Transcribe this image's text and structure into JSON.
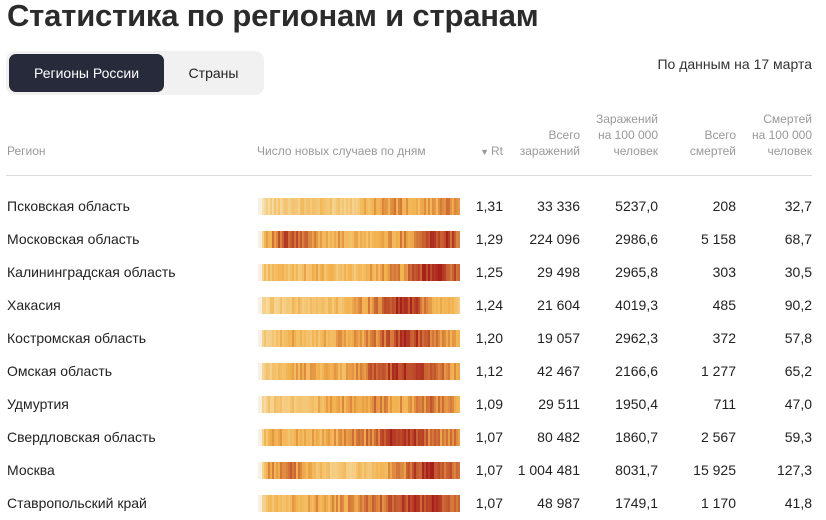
{
  "header": {
    "title": "Статистика по регионам и странам",
    "date_note": "По данным на 17 марта"
  },
  "tabs": [
    {
      "label": "Регионы России",
      "active": true
    },
    {
      "label": "Страны",
      "active": false
    }
  ],
  "columns": {
    "region": "Регион",
    "chart": "Число новых случаев по дням",
    "rt": "Rt",
    "rt_sort_icon": "sort-down-triangle",
    "total_line1": "Всего",
    "total_line2": "заражений",
    "per100_line1": "Заражений",
    "per100_line2": "на 100 000",
    "per100_line3": "человек",
    "deaths_line1": "Всего",
    "deaths_line2": "смертей",
    "dper100_line1": "Смертей",
    "dper100_line2": "на 100 000",
    "dper100_line3": "человек"
  },
  "colors": {
    "tab_active_bg": "#262a3a",
    "heat_low": "#f7e3b0",
    "heat_mid": "#f2b24e",
    "heat_high": "#a7201c"
  },
  "rows": [
    {
      "region": "Псковская область",
      "rt": "1,31",
      "total": "33 336",
      "per100": "5237,0",
      "deaths": "208",
      "dper100": "32,7",
      "heat_profile": [
        0.05,
        0.2,
        0.3,
        0.3,
        0.35,
        0.3,
        0.3,
        0.3,
        0.45,
        0.55,
        0.6,
        0.55,
        0.45,
        0.55,
        0.6,
        0.7
      ]
    },
    {
      "region": "Московская область",
      "rt": "1,29",
      "total": "224 096",
      "per100": "2986,6",
      "deaths": "5 158",
      "dper100": "68,7",
      "heat_profile": [
        0.5,
        0.6,
        0.8,
        0.75,
        0.6,
        0.5,
        0.5,
        0.45,
        0.4,
        0.5,
        0.55,
        0.6,
        0.7,
        0.9,
        0.9,
        0.75
      ]
    },
    {
      "region": "Калининградская область",
      "rt": "1,25",
      "total": "29 498",
      "per100": "2965,8",
      "deaths": "303",
      "dper100": "30,5",
      "heat_profile": [
        0.2,
        0.45,
        0.35,
        0.4,
        0.45,
        0.4,
        0.35,
        0.4,
        0.45,
        0.55,
        0.6,
        0.6,
        0.85,
        0.95,
        0.9,
        0.7
      ]
    },
    {
      "region": "Хакасия",
      "rt": "1,24",
      "total": "21 604",
      "per100": "4019,3",
      "deaths": "485",
      "dper100": "90,2",
      "heat_profile": [
        0.05,
        0.3,
        0.25,
        0.4,
        0.3,
        0.35,
        0.4,
        0.5,
        0.6,
        0.7,
        0.9,
        0.95,
        0.8,
        0.55,
        0.45,
        0.4
      ]
    },
    {
      "region": "Костромская область",
      "rt": "1,20",
      "total": "19 057",
      "per100": "2962,3",
      "deaths": "372",
      "dper100": "57,8",
      "heat_profile": [
        0.1,
        0.35,
        0.4,
        0.5,
        0.4,
        0.45,
        0.5,
        0.55,
        0.6,
        0.7,
        0.8,
        0.9,
        0.85,
        0.75,
        0.6,
        0.55
      ]
    },
    {
      "region": "Омская область",
      "rt": "1,12",
      "total": "42 467",
      "per100": "2166,6",
      "deaths": "1 277",
      "dper100": "65,2",
      "heat_profile": [
        0.05,
        0.3,
        0.45,
        0.5,
        0.55,
        0.5,
        0.45,
        0.55,
        0.7,
        0.8,
        0.85,
        0.9,
        0.95,
        0.8,
        0.65,
        0.6
      ]
    },
    {
      "region": "Удмуртия",
      "rt": "1,09",
      "total": "29 511",
      "per100": "1950,4",
      "deaths": "711",
      "dper100": "47,0",
      "heat_profile": [
        0.1,
        0.3,
        0.35,
        0.35,
        0.4,
        0.45,
        0.5,
        0.55,
        0.6,
        0.65,
        0.6,
        0.55,
        0.65,
        0.7,
        0.6,
        0.5
      ]
    },
    {
      "region": "Свердловская область",
      "rt": "1,07",
      "total": "80 482",
      "per100": "1860,7",
      "deaths": "2 567",
      "dper100": "59,3",
      "heat_profile": [
        0.3,
        0.5,
        0.45,
        0.5,
        0.5,
        0.45,
        0.55,
        0.6,
        0.65,
        0.75,
        0.9,
        0.95,
        0.85,
        0.7,
        0.65,
        0.6
      ]
    },
    {
      "region": "Москва",
      "rt": "1,07",
      "total": "1 004 481",
      "per100": "8031,7",
      "deaths": "15 925",
      "dper100": "127,3",
      "heat_profile": [
        0.45,
        0.55,
        0.75,
        0.6,
        0.45,
        0.3,
        0.3,
        0.3,
        0.35,
        0.4,
        0.55,
        0.7,
        0.85,
        0.95,
        0.8,
        0.6
      ]
    },
    {
      "region": "Ставропольский край",
      "rt": "1,07",
      "total": "48 987",
      "per100": "1749,1",
      "deaths": "1 170",
      "dper100": "41,8",
      "heat_profile": [
        0.15,
        0.4,
        0.45,
        0.5,
        0.55,
        0.5,
        0.55,
        0.6,
        0.65,
        0.7,
        0.8,
        0.85,
        0.85,
        0.9,
        0.8,
        0.7
      ]
    }
  ]
}
